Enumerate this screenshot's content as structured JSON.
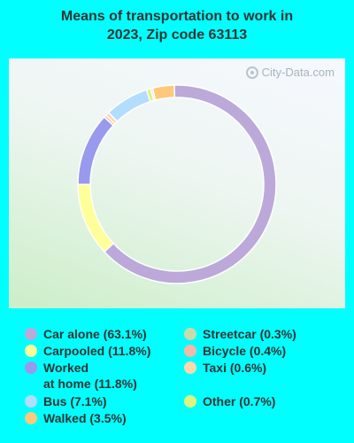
{
  "chart_data": {
    "type": "pie",
    "title": "Means of transportation to work in\n2023, Zip code 63113",
    "categories": [
      "Car alone",
      "Carpooled",
      "Worked at home",
      "Bus",
      "Walked",
      "Streetcar",
      "Bicycle",
      "Taxi",
      "Other"
    ],
    "values": [
      63.1,
      11.8,
      11.8,
      7.1,
      3.5,
      0.3,
      0.4,
      0.6,
      0.7
    ],
    "colors": [
      "#bca9da",
      "#ffff99",
      "#9999ee",
      "#b3ddff",
      "#ffc87a",
      "#c9dbaa",
      "#f2b8aa",
      "#ffd7ad",
      "#ddf57f"
    ],
    "legend": [
      {
        "label": "Car alone (63.1%)",
        "color": "#bca9da"
      },
      {
        "label": "Carpooled (11.8%)",
        "color": "#ffff99"
      },
      {
        "label": "Worked\nat home (11.8%)",
        "color": "#9999ee"
      },
      {
        "label": "Bus (7.1%)",
        "color": "#b3ddff"
      },
      {
        "label": "Walked (3.5%)",
        "color": "#ffc87a"
      },
      {
        "label": "Streetcar (0.3%)",
        "color": "#c9dbaa"
      },
      {
        "label": "Bicycle (0.4%)",
        "color": "#f2b8aa"
      },
      {
        "label": "Taxi (0.6%)",
        "color": "#ffd7ad"
      },
      {
        "label": "Other (0.7%)",
        "color": "#ddf57f"
      }
    ],
    "legend_position": "bottom"
  },
  "watermark": {
    "text": "City-Data.com"
  }
}
